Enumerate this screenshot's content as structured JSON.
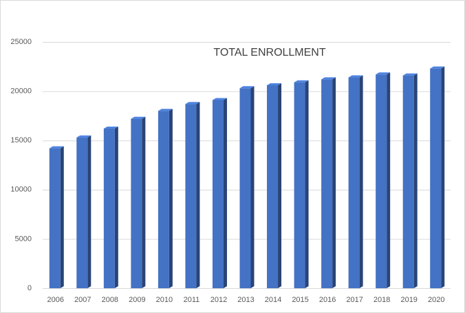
{
  "chart_data": {
    "type": "bar",
    "title": "TOTAL ENROLLMENT",
    "categories": [
      "2006",
      "2007",
      "2008",
      "2009",
      "2010",
      "2011",
      "2012",
      "2013",
      "2014",
      "2015",
      "2016",
      "2017",
      "2018",
      "2019",
      "2020"
    ],
    "values": [
      14200,
      15300,
      16200,
      17200,
      18000,
      18700,
      19100,
      20300,
      20600,
      20900,
      21200,
      21400,
      21700,
      21600,
      22300
    ],
    "color": "#4472c4",
    "ylim": [
      0,
      25000
    ],
    "yticks": [
      0,
      5000,
      10000,
      15000,
      20000,
      25000
    ],
    "grid": true
  }
}
